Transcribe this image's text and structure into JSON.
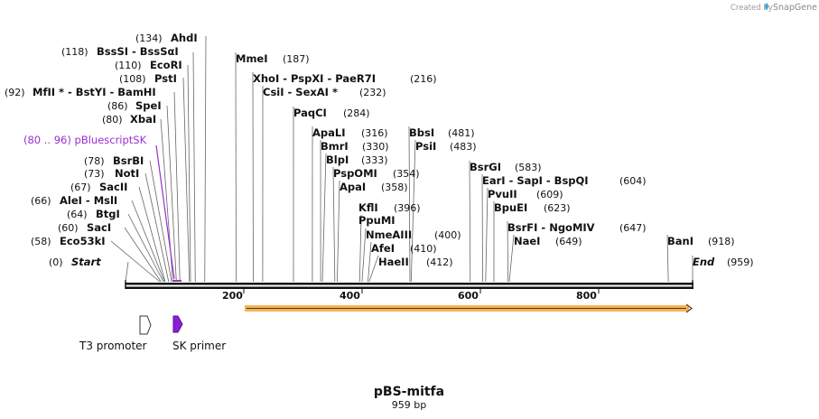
{
  "credit": {
    "prefix": "Created by",
    "brand": "SnapGene"
  },
  "map": {
    "title": "pBS-mitfa",
    "length_label": "959 bp",
    "length": 959
  },
  "axis_ticks": [
    "200",
    "400",
    "600",
    "800"
  ],
  "sites": [
    {
      "pos": "(134)",
      "name": "AhdI",
      "loc": 134
    },
    {
      "pos": "(118)",
      "name": "BssSI  -  BssSαI",
      "loc": 118
    },
    {
      "pos": "(110)",
      "name": "EcoRI",
      "loc": 110
    },
    {
      "pos": "(108)",
      "name": "PstI",
      "loc": 108
    },
    {
      "pos": "(92)",
      "name": "MfII * - BstYI  -  BamHI",
      "loc": 92
    },
    {
      "pos": "(86)",
      "name": "SpeI",
      "loc": 86
    },
    {
      "pos": "(80)",
      "name": "XbaI",
      "loc": 80
    },
    {
      "pos": "(78)",
      "name": "BsrBI",
      "loc": 78
    },
    {
      "pos": "(73)",
      "name": "NotI",
      "loc": 73
    },
    {
      "pos": "(67)",
      "name": "SacII",
      "loc": 67
    },
    {
      "pos": "(66)",
      "name": "AleI  -  MslI",
      "loc": 66
    },
    {
      "pos": "(64)",
      "name": "BtgI",
      "loc": 64
    },
    {
      "pos": "(60)",
      "name": "SacI",
      "loc": 60
    },
    {
      "pos": "(58)",
      "name": "Eco53kI",
      "loc": 58
    },
    {
      "pos": "(0)",
      "name": "Start",
      "loc": 0
    },
    {
      "pos": "(187)",
      "name": "MmeI",
      "loc": 187
    },
    {
      "pos": "(216)",
      "name": "XhoI  -  PspXI  -  PaeR7I",
      "loc": 216
    },
    {
      "pos": "(232)",
      "name": "CsiI  -  SexAI *",
      "loc": 232
    },
    {
      "pos": "(284)",
      "name": "PaqCI",
      "loc": 284
    },
    {
      "pos": "(316)",
      "name": "ApaLI",
      "loc": 316
    },
    {
      "pos": "(330)",
      "name": "BmrI",
      "loc": 330
    },
    {
      "pos": "(333)",
      "name": "BlpI",
      "loc": 333
    },
    {
      "pos": "(354)",
      "name": "PspOMI",
      "loc": 354
    },
    {
      "pos": "(358)",
      "name": "ApaI",
      "loc": 358
    },
    {
      "pos": "(396)",
      "name": "KflI",
      "loc": 396
    },
    {
      "pos": "",
      "name": "PpuMI",
      "loc": 396
    },
    {
      "pos": "(400)",
      "name": "NmeAIII",
      "loc": 400
    },
    {
      "pos": "(410)",
      "name": "AfeI",
      "loc": 410
    },
    {
      "pos": "(412)",
      "name": "HaeII",
      "loc": 412
    },
    {
      "pos": "(481)",
      "name": "BbsI",
      "loc": 481
    },
    {
      "pos": "(483)",
      "name": "PsiI",
      "loc": 483
    },
    {
      "pos": "(583)",
      "name": "BsrGI",
      "loc": 583
    },
    {
      "pos": "(604)",
      "name": "EarI  -  SapI  -  BspQI",
      "loc": 604
    },
    {
      "pos": "(609)",
      "name": "PvuII",
      "loc": 609
    },
    {
      "pos": "(623)",
      "name": "BpuEI",
      "loc": 623
    },
    {
      "pos": "(647)",
      "name": "BsrFI  -  NgoMIV",
      "loc": 647
    },
    {
      "pos": "(649)",
      "name": "NaeI",
      "loc": 649
    },
    {
      "pos": "(918)",
      "name": "BanI",
      "loc": 918
    },
    {
      "pos": "(959)",
      "name": "End",
      "loc": 959
    }
  ],
  "primer_site": {
    "label": "(80 .. 96)  pBluescriptSK",
    "start": 80,
    "end": 96
  },
  "features": [
    {
      "name": "T3 promoter",
      "color": "#ffffff"
    },
    {
      "name": "SK primer",
      "color": "#8a1fd6"
    }
  ],
  "colors": {
    "accent_orange": "#f2b35a",
    "primer_purple": "#9b2fd0"
  }
}
